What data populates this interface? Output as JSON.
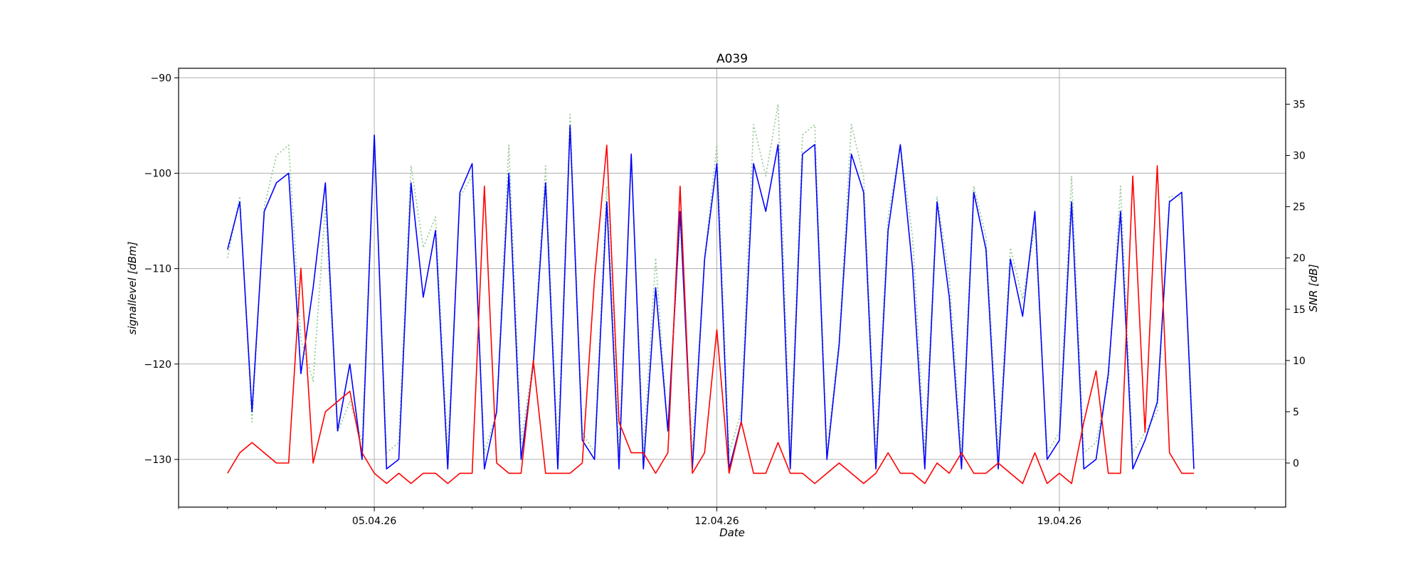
{
  "chart_data": {
    "type": "line",
    "title": "A039",
    "xlabel": "Date",
    "ylabel": "signallevel [dBm]",
    "y2label": "SNR [dB]",
    "x_tick_labels": [
      "05.04.26",
      "12.04.26",
      "19.04.26"
    ],
    "x_tick_dates": [
      "2026-04-05",
      "2026-04-12",
      "2026-04-19"
    ],
    "xlim": [
      "2026-04-01T00:00",
      "2026-04-23T15:00"
    ],
    "data_range": [
      "2026-04-02T00:00",
      "2026-04-21T22:00"
    ],
    "ylim": [
      -135,
      -89
    ],
    "y_ticks": [
      -90,
      -100,
      -110,
      -120,
      -130
    ],
    "y2lim": [
      -4.3,
      38.5
    ],
    "y2_ticks": [
      0,
      5,
      10,
      15,
      20,
      25,
      30,
      35
    ],
    "grid": true,
    "colors": {
      "signal": "#0000ff",
      "snr": "#ff0000",
      "dotted": "#99cc99",
      "grid": "#b0b0b0"
    },
    "series": [
      {
        "axis": "right",
        "style": "dotted",
        "color": "#99cc99",
        "x": [
          "2026-04-02T00:00",
          "2026-04-02T06:00",
          "2026-04-02T12:00",
          "2026-04-02T18:00",
          "2026-04-03T00:00",
          "2026-04-03T06:00",
          "2026-04-03T12:00",
          "2026-04-03T18:00",
          "2026-04-04T00:00",
          "2026-04-04T06:00",
          "2026-04-04T12:00",
          "2026-04-04T18:00",
          "2026-04-05T00:00",
          "2026-04-05T06:00",
          "2026-04-05T12:00",
          "2026-04-05T18:00",
          "2026-04-06T00:00",
          "2026-04-06T06:00",
          "2026-04-06T12:00",
          "2026-04-06T18:00",
          "2026-04-07T00:00",
          "2026-04-07T06:00",
          "2026-04-07T12:00",
          "2026-04-07T18:00",
          "2026-04-08T00:00",
          "2026-04-08T06:00",
          "2026-04-08T12:00",
          "2026-04-08T18:00",
          "2026-04-09T00:00",
          "2026-04-09T06:00",
          "2026-04-09T12:00",
          "2026-04-09T18:00",
          "2026-04-10T00:00",
          "2026-04-10T06:00",
          "2026-04-10T12:00",
          "2026-04-10T18:00",
          "2026-04-11T00:00",
          "2026-04-11T06:00",
          "2026-04-11T12:00",
          "2026-04-11T18:00",
          "2026-04-12T00:00",
          "2026-04-12T06:00",
          "2026-04-12T12:00",
          "2026-04-12T18:00",
          "2026-04-13T00:00",
          "2026-04-13T06:00",
          "2026-04-13T12:00",
          "2026-04-13T18:00",
          "2026-04-14T00:00",
          "2026-04-14T06:00",
          "2026-04-14T12:00",
          "2026-04-14T18:00",
          "2026-04-15T00:00",
          "2026-04-15T06:00",
          "2026-04-15T12:00",
          "2026-04-15T18:00",
          "2026-04-16T00:00",
          "2026-04-16T06:00",
          "2026-04-16T12:00",
          "2026-04-16T18:00",
          "2026-04-17T00:00",
          "2026-04-17T06:00",
          "2026-04-17T12:00",
          "2026-04-17T18:00",
          "2026-04-18T00:00",
          "2026-04-18T06:00",
          "2026-04-18T12:00",
          "2026-04-18T18:00",
          "2026-04-19T00:00",
          "2026-04-19T06:00",
          "2026-04-19T12:00",
          "2026-04-19T18:00",
          "2026-04-20T00:00",
          "2026-04-20T06:00",
          "2026-04-20T12:00",
          "2026-04-20T18:00",
          "2026-04-21T00:00",
          "2026-04-21T06:00",
          "2026-04-21T12:00",
          "2026-04-21T18:00"
        ],
        "values": [
          20,
          26,
          4,
          25,
          30,
          31,
          12,
          8,
          25,
          3,
          6,
          2,
          32,
          1,
          2,
          29,
          21,
          24,
          1,
          26,
          28,
          1,
          5,
          31,
          2,
          10,
          29,
          1,
          34,
          3,
          1,
          27,
          1,
          30,
          1,
          20,
          3,
          24,
          1,
          20,
          31,
          1,
          5,
          33,
          28,
          35,
          1,
          32,
          33,
          1,
          12,
          33,
          28,
          1,
          24,
          31,
          22,
          1,
          26,
          18,
          1,
          27,
          22,
          1,
          21,
          16,
          23,
          1,
          3,
          28,
          1,
          2,
          8,
          27,
          1,
          3,
          5,
          26,
          26,
          1
        ]
      },
      {
        "name": "signallevel",
        "axis": "left",
        "color": "#0000ff",
        "x": [
          "2026-04-02T00:00",
          "2026-04-02T06:00",
          "2026-04-02T12:00",
          "2026-04-02T18:00",
          "2026-04-03T00:00",
          "2026-04-03T06:00",
          "2026-04-03T12:00",
          "2026-04-03T18:00",
          "2026-04-04T00:00",
          "2026-04-04T06:00",
          "2026-04-04T12:00",
          "2026-04-04T18:00",
          "2026-04-05T00:00",
          "2026-04-05T06:00",
          "2026-04-05T12:00",
          "2026-04-05T18:00",
          "2026-04-06T00:00",
          "2026-04-06T06:00",
          "2026-04-06T12:00",
          "2026-04-06T18:00",
          "2026-04-07T00:00",
          "2026-04-07T06:00",
          "2026-04-07T12:00",
          "2026-04-07T18:00",
          "2026-04-08T00:00",
          "2026-04-08T06:00",
          "2026-04-08T12:00",
          "2026-04-08T18:00",
          "2026-04-09T00:00",
          "2026-04-09T06:00",
          "2026-04-09T12:00",
          "2026-04-09T18:00",
          "2026-04-10T00:00",
          "2026-04-10T06:00",
          "2026-04-10T12:00",
          "2026-04-10T18:00",
          "2026-04-11T00:00",
          "2026-04-11T06:00",
          "2026-04-11T12:00",
          "2026-04-11T18:00",
          "2026-04-12T00:00",
          "2026-04-12T06:00",
          "2026-04-12T12:00",
          "2026-04-12T18:00",
          "2026-04-13T00:00",
          "2026-04-13T06:00",
          "2026-04-13T12:00",
          "2026-04-13T18:00",
          "2026-04-14T00:00",
          "2026-04-14T06:00",
          "2026-04-14T12:00",
          "2026-04-14T18:00",
          "2026-04-15T00:00",
          "2026-04-15T06:00",
          "2026-04-15T12:00",
          "2026-04-15T18:00",
          "2026-04-16T00:00",
          "2026-04-16T06:00",
          "2026-04-16T12:00",
          "2026-04-16T18:00",
          "2026-04-17T00:00",
          "2026-04-17T06:00",
          "2026-04-17T12:00",
          "2026-04-17T18:00",
          "2026-04-18T00:00",
          "2026-04-18T06:00",
          "2026-04-18T12:00",
          "2026-04-18T18:00",
          "2026-04-19T00:00",
          "2026-04-19T06:00",
          "2026-04-19T12:00",
          "2026-04-19T18:00",
          "2026-04-20T00:00",
          "2026-04-20T06:00",
          "2026-04-20T12:00",
          "2026-04-20T18:00",
          "2026-04-21T00:00",
          "2026-04-21T06:00",
          "2026-04-21T12:00",
          "2026-04-21T18:00"
        ],
        "values": [
          -108,
          -103,
          -125,
          -104,
          -101,
          -100,
          -121,
          -112,
          -101,
          -127,
          -120,
          -130,
          -96,
          -131,
          -130,
          -101,
          -113,
          -106,
          -131,
          -102,
          -99,
          -131,
          -125,
          -100,
          -130,
          -120,
          -101,
          -131,
          -95,
          -128,
          -130,
          -103,
          -131,
          -98,
          -131,
          -112,
          -127,
          -104,
          -131,
          -109,
          -99,
          -131,
          -126,
          -99,
          -104,
          -97,
          -131,
          -98,
          -97,
          -130,
          -118,
          -98,
          -102,
          -131,
          -106,
          -97,
          -110,
          -131,
          -103,
          -113,
          -131,
          -102,
          -108,
          -131,
          -109,
          -115,
          -104,
          -130,
          -128,
          -103,
          -131,
          -130,
          -121,
          -104,
          -131,
          -128,
          -124,
          -103,
          -102,
          -131
        ]
      },
      {
        "name": "SNR",
        "axis": "right",
        "color": "#ff0000",
        "x": [
          "2026-04-02T00:00",
          "2026-04-02T06:00",
          "2026-04-02T12:00",
          "2026-04-02T18:00",
          "2026-04-03T00:00",
          "2026-04-03T06:00",
          "2026-04-03T12:00",
          "2026-04-03T18:00",
          "2026-04-04T00:00",
          "2026-04-04T06:00",
          "2026-04-04T12:00",
          "2026-04-04T18:00",
          "2026-04-05T00:00",
          "2026-04-05T06:00",
          "2026-04-05T12:00",
          "2026-04-05T18:00",
          "2026-04-06T00:00",
          "2026-04-06T06:00",
          "2026-04-06T12:00",
          "2026-04-06T18:00",
          "2026-04-07T00:00",
          "2026-04-07T06:00",
          "2026-04-07T12:00",
          "2026-04-07T18:00",
          "2026-04-08T00:00",
          "2026-04-08T06:00",
          "2026-04-08T12:00",
          "2026-04-08T18:00",
          "2026-04-09T00:00",
          "2026-04-09T06:00",
          "2026-04-09T12:00",
          "2026-04-09T18:00",
          "2026-04-10T00:00",
          "2026-04-10T06:00",
          "2026-04-10T12:00",
          "2026-04-10T18:00",
          "2026-04-11T00:00",
          "2026-04-11T06:00",
          "2026-04-11T12:00",
          "2026-04-11T18:00",
          "2026-04-12T00:00",
          "2026-04-12T06:00",
          "2026-04-12T12:00",
          "2026-04-12T18:00",
          "2026-04-13T00:00",
          "2026-04-13T06:00",
          "2026-04-13T12:00",
          "2026-04-13T18:00",
          "2026-04-14T00:00",
          "2026-04-14T06:00",
          "2026-04-14T12:00",
          "2026-04-14T18:00",
          "2026-04-15T00:00",
          "2026-04-15T06:00",
          "2026-04-15T12:00",
          "2026-04-15T18:00",
          "2026-04-16T00:00",
          "2026-04-16T06:00",
          "2026-04-16T12:00",
          "2026-04-16T18:00",
          "2026-04-17T00:00",
          "2026-04-17T06:00",
          "2026-04-17T12:00",
          "2026-04-17T18:00",
          "2026-04-18T00:00",
          "2026-04-18T06:00",
          "2026-04-18T12:00",
          "2026-04-18T18:00",
          "2026-04-19T00:00",
          "2026-04-19T06:00",
          "2026-04-19T12:00",
          "2026-04-19T18:00",
          "2026-04-20T00:00",
          "2026-04-20T06:00",
          "2026-04-20T12:00",
          "2026-04-20T18:00",
          "2026-04-21T00:00",
          "2026-04-21T06:00",
          "2026-04-21T12:00",
          "2026-04-21T18:00"
        ],
        "values": [
          -1,
          1,
          2,
          1,
          0,
          0,
          19,
          0,
          5,
          6,
          7,
          1,
          -1,
          -2,
          -1,
          -2,
          -1,
          -1,
          -2,
          -1,
          -1,
          27,
          0,
          -1,
          -1,
          10,
          -1,
          -1,
          -1,
          0,
          18,
          31,
          4,
          1,
          1,
          -1,
          1,
          27,
          -1,
          1,
          13,
          -1,
          4,
          -1,
          -1,
          2,
          -1,
          -1,
          -2,
          -1,
          0,
          -1,
          -2,
          -1,
          1,
          -1,
          -1,
          -2,
          0,
          -1,
          1,
          -1,
          -1,
          0,
          -1,
          -2,
          1,
          -2,
          -1,
          -2,
          4,
          9,
          -1,
          -1,
          28,
          3,
          29,
          1,
          -1,
          -1
        ]
      }
    ]
  }
}
